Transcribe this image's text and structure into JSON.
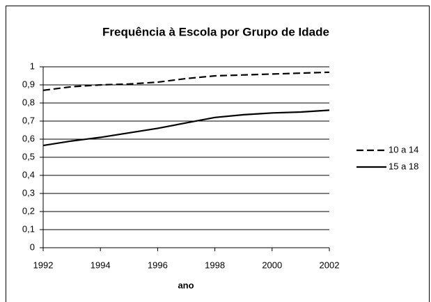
{
  "chart_data": {
    "type": "line",
    "title": "Frequência à Escola por Grupo de Idade",
    "x_label": "ano",
    "x": [
      1992,
      1993,
      1994,
      1995,
      1996,
      1997,
      1998,
      1999,
      2000,
      2001,
      2002
    ],
    "series": [
      {
        "name": "10 a 14",
        "color": "#000000",
        "style": "dashed",
        "values": [
          0.87,
          0.89,
          0.9,
          0.905,
          0.915,
          0.935,
          0.95,
          0.955,
          0.96,
          0.965,
          0.97
        ]
      },
      {
        "name": "15 a 18",
        "color": "#000000",
        "style": "solid",
        "values": [
          0.565,
          0.59,
          0.61,
          0.635,
          0.66,
          0.69,
          0.72,
          0.735,
          0.745,
          0.75,
          0.76
        ]
      }
    ],
    "xlim": [
      1992,
      2002
    ],
    "xticks": [
      1992,
      1994,
      1996,
      1998,
      2000,
      2002
    ],
    "ylim": [
      0,
      1
    ],
    "yticks": [
      0,
      {
        "value": 0.1,
        "label": "0,1"
      },
      {
        "value": 0.2,
        "label": "0,2"
      },
      {
        "value": 0.3,
        "label": "0,3"
      },
      {
        "value": 0.4,
        "label": "0,4"
      },
      {
        "value": 0.5,
        "label": "0,5"
      },
      {
        "value": 0.6,
        "label": "0,6"
      },
      {
        "value": 0.7,
        "label": "0,7"
      },
      {
        "value": 0.8,
        "label": "0,8"
      },
      {
        "value": 0.9,
        "label": "0,9"
      },
      1
    ],
    "grid": true,
    "legend": "right"
  }
}
